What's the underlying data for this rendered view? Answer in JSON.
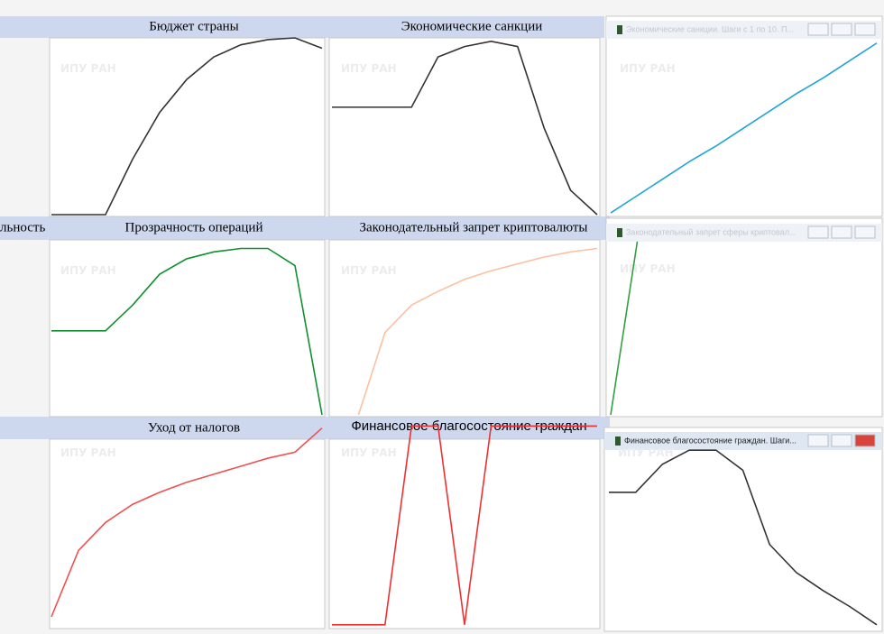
{
  "watermark": "ИПУ РАН",
  "left_fragment": "льность",
  "ylim": [
    0,
    102
  ],
  "panels": [
    {
      "title": "Бюджет страны",
      "color": "#333333",
      "values": [
        0,
        0,
        0,
        32,
        59,
        78,
        91,
        98,
        101,
        102,
        96
      ]
    },
    {
      "title": "Экономические санкции",
      "color": "#333333",
      "values": [
        62,
        62,
        62,
        62,
        91,
        97,
        100,
        97,
        50,
        14,
        0
      ]
    },
    {
      "window_title": "Экономические санкции. Шаги с 1 по 10. П...",
      "color": "#1ea4d6",
      "values": [
        1,
        11,
        21,
        31,
        40,
        50,
        60,
        70,
        79,
        89,
        99
      ]
    },
    {
      "title": "Прозрачность операций",
      "color": "#109030",
      "values": [
        49,
        49,
        49,
        64,
        82,
        91,
        95,
        97,
        97,
        87,
        0
      ]
    },
    {
      "title": "Законодательный запрет криптовалюты",
      "color": "#fcc0a0",
      "values": [
        null,
        0,
        48,
        64,
        72,
        79,
        84,
        88,
        92,
        95,
        97
      ]
    },
    {
      "window_title": "Законодательный запрет сферы криптовал...",
      "color": "#30a040",
      "values": [
        0,
        100,
        null,
        null,
        null,
        null,
        null,
        null,
        null,
        null,
        null
      ]
    },
    {
      "title": "Уход от налогов",
      "color": "#f05050",
      "values": [
        5,
        38,
        52,
        61,
        67,
        72,
        76,
        80,
        84,
        87,
        99
      ]
    },
    {
      "title": "Финансовое благосостояние граждан",
      "color": "#f03030",
      "values": [
        1,
        1,
        1,
        100,
        100,
        1,
        100,
        100,
        100,
        100,
        100
      ]
    },
    {
      "window_title": "Финансовое благосостояние граждан. Шаги...",
      "color": "#333333",
      "values": [
        67,
        67,
        81,
        88,
        88,
        78,
        41,
        27,
        18,
        10,
        1
      ]
    }
  ]
}
